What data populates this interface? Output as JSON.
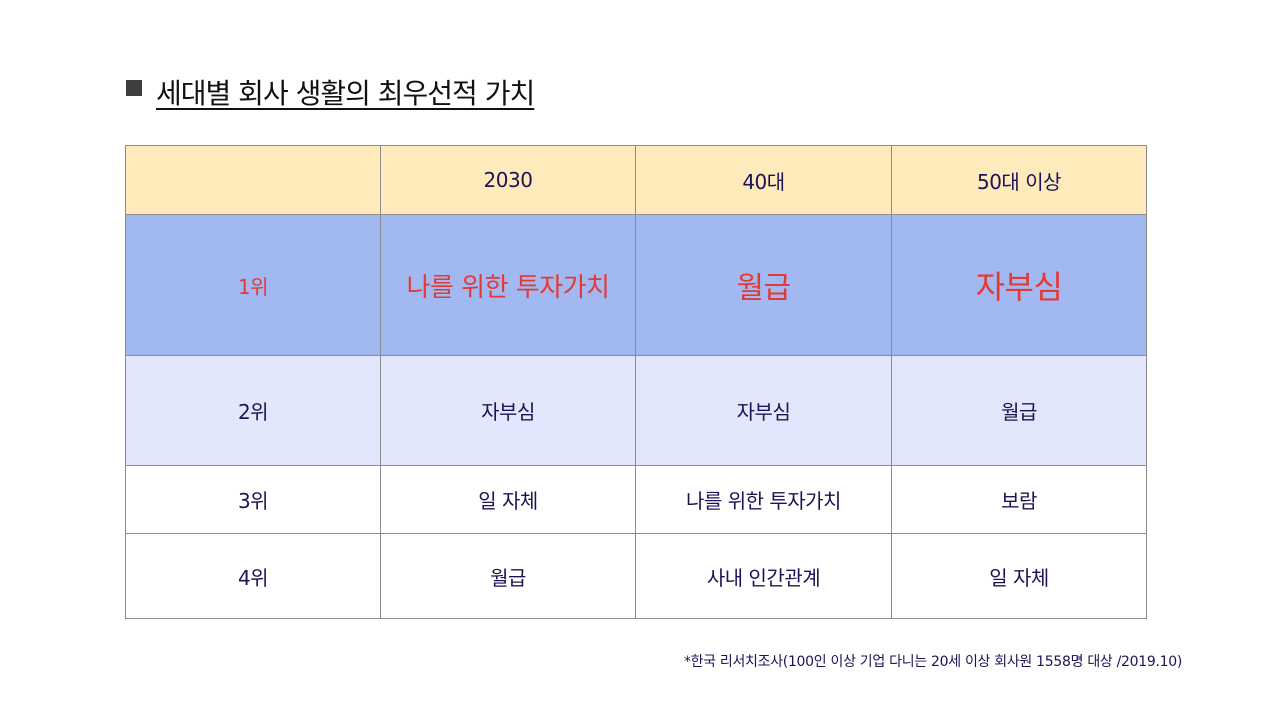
{
  "title": "세대별 회사 생활의 최우선적 가치",
  "table": {
    "headers": [
      "",
      "2030",
      "40대",
      "50대 이상"
    ],
    "rows": [
      {
        "rank": "1위",
        "values": [
          "나를 위한 투자가치",
          "월급",
          "자부심"
        ]
      },
      {
        "rank": "2위",
        "values": [
          "자부심",
          "자부심",
          "월급"
        ]
      },
      {
        "rank": "3위",
        "values": [
          "일 자체",
          "나를 위한 투자가치",
          "보람"
        ]
      },
      {
        "rank": "4위",
        "values": [
          "월급",
          "사내 인간관계",
          "일 자체"
        ]
      }
    ]
  },
  "footnote": "*한국 리서치조사(100인 이상 기업 다니는 20세 이상 회사원 1558명 대상 /2019.10)",
  "colors": {
    "header_bg": "#ffeabb",
    "rank1_bg": "#a1b9f0",
    "rank1_text": "#e53935",
    "rank2_bg": "#e3e7fb",
    "body_text": "#1c1454"
  }
}
